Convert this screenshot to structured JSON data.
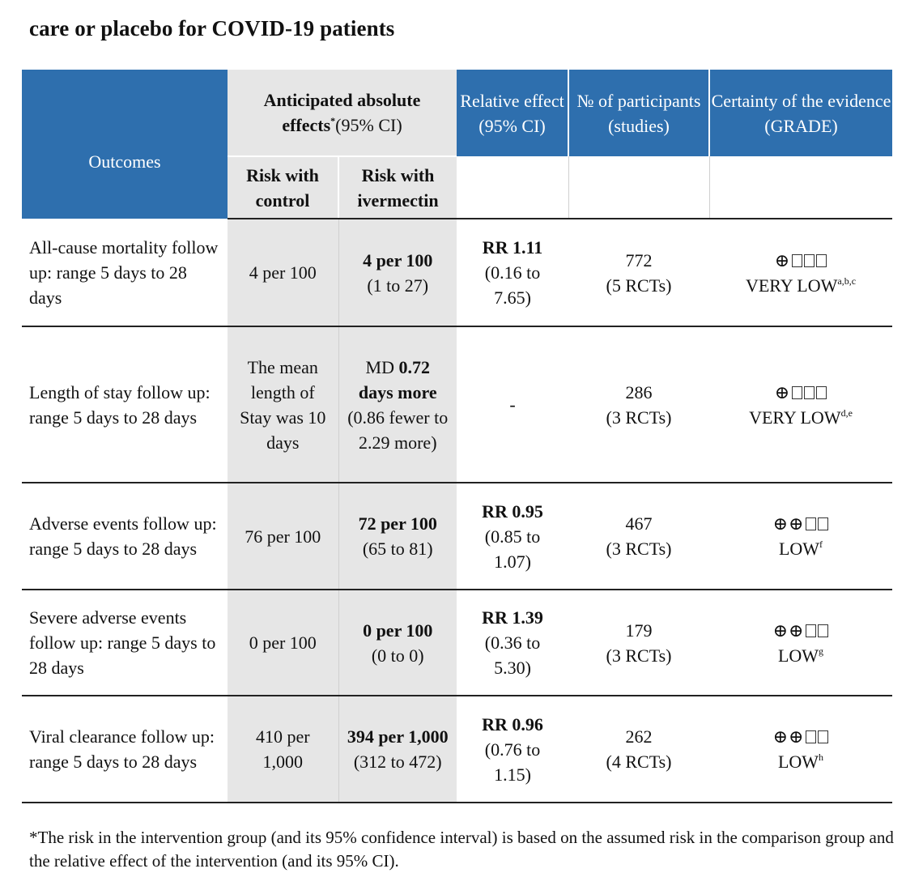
{
  "title": "care or placebo for COVID-19 patients",
  "header": {
    "outcomes": "Outcomes",
    "anticipated_main": "Anticipated absolute",
    "anticipated_effects": "effects",
    "anticipated_star": "*",
    "anticipated_ci": "(95% CI)",
    "risk_control": "Risk with control",
    "risk_ivermectin": "Risk with ivermectin",
    "relative_effect": "Relative effect (95% CI)",
    "participants": "№ of participants (studies)",
    "certainty": "Certainty of the evidence (GRADE)"
  },
  "colors": {
    "header_blue": "#2e6fae",
    "shaded_grey": "#e6e6e6"
  },
  "rows": [
    {
      "outcome": "All-cause mortality follow up: range 5 days to 28 days",
      "control": "4 per 100",
      "ivm_bold": "4 per 100",
      "ivm_rest": "(1 to 27)",
      "rel_bold": "RR 1.11",
      "rel_rest": "(0.16 to 7.65)",
      "participants": "772",
      "studies": "(5 RCTs)",
      "grade_symbols": "⊕",
      "grade_empty": 3,
      "grade_label": "VERY LOW",
      "grade_notes": "a,b,c"
    },
    {
      "outcome": "Length of stay follow up: range 5 days to 28 days",
      "control": "The mean length of Stay was 10 days",
      "ivm_prefix": "MD",
      "ivm_bold": "0.72 days more",
      "ivm_rest": "(0.86 fewer to 2.29 more)",
      "rel_bold": "",
      "rel_rest": "-",
      "participants": "286",
      "studies": "(3 RCTs)",
      "grade_symbols": "⊕",
      "grade_empty": 3,
      "grade_label": "VERY LOW",
      "grade_notes": "d,e"
    },
    {
      "outcome": "Adverse events follow up: range 5 days to 28 days",
      "control": "76 per 100",
      "ivm_bold": "72 per 100",
      "ivm_rest": "(65 to 81)",
      "rel_bold": "RR 0.95",
      "rel_rest": "(0.85 to 1.07)",
      "participants": "467",
      "studies": "(3 RCTs)",
      "grade_symbols": "⊕⊕",
      "grade_empty": 2,
      "grade_label": "LOW",
      "grade_notes": "f"
    },
    {
      "outcome": "Severe adverse events follow up: range 5 days to 28 days",
      "control": "0 per 100",
      "ivm_bold": "0 per 100",
      "ivm_rest": "(0 to 0)",
      "rel_bold": "RR 1.39",
      "rel_rest": "(0.36 to 5.30)",
      "participants": "179",
      "studies": "(3 RCTs)",
      "grade_symbols": "⊕⊕",
      "grade_empty": 2,
      "grade_label": "LOW",
      "grade_notes": "g"
    },
    {
      "outcome": "Viral clearance follow up: range 5 days to 28 days",
      "control": "410 per 1,000",
      "ivm_bold": "394 per 1,000",
      "ivm_rest": "(312 to 472)",
      "rel_bold": "RR 0.96",
      "rel_rest": "(0.76 to 1.15)",
      "participants": "262",
      "studies": "(4 RCTs)",
      "grade_symbols": "⊕⊕",
      "grade_empty": 2,
      "grade_label": "LOW",
      "grade_notes": "h"
    }
  ],
  "footnote": "*The risk in the intervention group (and its 95% confidence interval) is based on the assumed risk in the comparison group and the relative effect of the intervention (and its 95% CI)."
}
